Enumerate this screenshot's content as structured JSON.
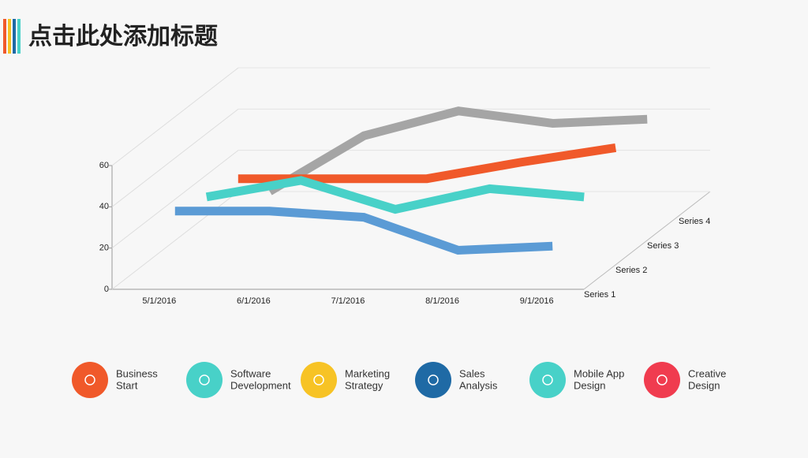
{
  "header": {
    "title": "点击此处添加标题"
  },
  "chart_data": {
    "type": "line3d",
    "categories": [
      "5/1/2016",
      "6/1/2016",
      "7/1/2016",
      "8/1/2016",
      "9/1/2016"
    ],
    "series": [
      {
        "name": "Series 1",
        "color": "#5b9bd5",
        "values": [
          32,
          32,
          29,
          13,
          15
        ]
      },
      {
        "name": "Series 2",
        "color": "#48d1c8",
        "values": [
          27,
          35,
          21,
          31,
          27
        ]
      },
      {
        "name": "Series 3",
        "color": "#f0592a",
        "values": [
          24,
          24,
          24,
          32,
          39
        ]
      },
      {
        "name": "Series 4",
        "color": "#a5a5a5",
        "values": [
          6,
          33,
          45,
          39,
          41
        ]
      }
    ],
    "ylim": [
      0,
      60
    ],
    "yticks": [
      0,
      20,
      40,
      60
    ],
    "grid": true
  },
  "features": [
    {
      "lines": [
        "Business",
        "Start"
      ],
      "color": "#f0592a"
    },
    {
      "lines": [
        "Software",
        "Development"
      ],
      "color": "#48d1c8"
    },
    {
      "lines": [
        "Marketing",
        "Strategy"
      ],
      "color": "#f7c325"
    },
    {
      "lines": [
        "Sales",
        "Analysis"
      ],
      "color": "#1f6aa5"
    },
    {
      "lines": [
        "Mobile App",
        "Design"
      ],
      "color": "#48d1c8"
    },
    {
      "lines": [
        "Creative",
        "Design"
      ],
      "color": "#f03c4f"
    }
  ]
}
